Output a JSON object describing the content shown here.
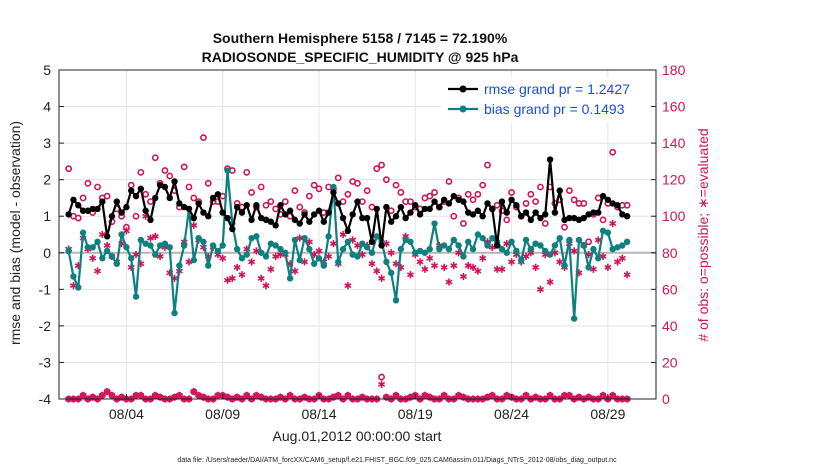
{
  "chart_data": {
    "type": "line",
    "title_line1": "Southern Hemisphere 5158 / 7145 = 72.190%",
    "title_line2": "RADIOSONDE_SPECIFIC_HUMIDITY @ 925 hPa",
    "xlabel": "Aug.01,2012 00:00:00 start",
    "ylabel": "rmse and bias (model - observation)",
    "y2label": "# of obs: o=possible; ∗=evaluated",
    "footer": "data file: /Users/raeder/DAI/ATM_forcXX/CAM6_setup/f.e21.FHIST_BGC.f09_025.CAM6assim.011/Diags_NTrS_2012-08/obs_diag_output.nc",
    "ylim": [
      -4,
      5
    ],
    "y2lim": [
      0,
      180
    ],
    "xlim": [
      0.5,
      31.5
    ],
    "yticks": [
      "-4",
      "-3",
      "-2",
      "-1",
      "0",
      "1",
      "2",
      "3",
      "4",
      "5"
    ],
    "y2ticks": [
      "0",
      "20",
      "40",
      "60",
      "80",
      "100",
      "120",
      "140",
      "160",
      "180"
    ],
    "xtick_labels": [
      "08/04",
      "08/09",
      "08/14",
      "08/19",
      "08/24",
      "08/29"
    ],
    "xtick_days": [
      4,
      9,
      14,
      19,
      24,
      29
    ],
    "legend": [
      {
        "label": "rmse grand pr = 1.2427",
        "color": "#000000"
      },
      {
        "label": "bias grand pr = 0.1493",
        "color": "#0e8080"
      }
    ],
    "colors": {
      "rmse": "#000000",
      "bias": "#0e8080",
      "obs": "#d0145a",
      "zero": "#b5b5b5",
      "grid": "#e4e4e4"
    },
    "x_step_days": 0.25,
    "x_start_day": 1.0,
    "series": [
      {
        "name": "rmse",
        "values": [
          1.05,
          1.45,
          1.3,
          1.15,
          1.15,
          1.2,
          1.2,
          1.4,
          0.45,
          1.0,
          1.4,
          1.1,
          1.25,
          1.7,
          1.55,
          1.75,
          1.15,
          0.9,
          1.5,
          1.85,
          1.8,
          1.5,
          1.95,
          1.35,
          1.25,
          1.2,
          0.95,
          1.35,
          1.1,
          1.0,
          1.5,
          1.6,
          1.1,
          0.95,
          0.65,
          1.25,
          1.1,
          1.3,
          0.9,
          1.3,
          0.95,
          0.9,
          0.85,
          0.75,
          1.3,
          1.05,
          1.15,
          0.9,
          0.8,
          1.05,
          0.85,
          1.05,
          1.15,
          0.85,
          1.1,
          1.65,
          1.35,
          0.95,
          0.6,
          1.05,
          1.4,
          0.95,
          0.95,
          0.3,
          1.2,
          0.2,
          1.25,
          0.85,
          1.0,
          1.25,
          0.95,
          1.1,
          1.3,
          1.05,
          1.2,
          1.2,
          1.4,
          1.25,
          1.45,
          1.35,
          1.55,
          1.45,
          1.4,
          1.1,
          1.05,
          1.15,
          1.0,
          1.35,
          1.2,
          0.2,
          1.4,
          1.1,
          1.45,
          1.3,
          1.0,
          1.1,
          0.9,
          1.1,
          0.95,
          1.05,
          2.55,
          1.1,
          1.7,
          0.9,
          0.95,
          0.95,
          0.9,
          0.95,
          1.05,
          1.1,
          1.1,
          1.55,
          1.45,
          1.35,
          1.3,
          1.05,
          1.0
        ]
      },
      {
        "name": "bias",
        "values": [
          0.05,
          -0.65,
          -0.95,
          0.55,
          0.15,
          0.15,
          0.3,
          -0.15,
          0.05,
          -0.1,
          -0.3,
          0.5,
          0.15,
          -0.15,
          -1.2,
          0.35,
          0.25,
          0.2,
          -0.05,
          0.2,
          0.25,
          0.15,
          -1.65,
          -0.35,
          0.2,
          1.2,
          -0.2,
          0.4,
          0.3,
          -0.35,
          0.2,
          0.05,
          0.2,
          2.25,
          0.8,
          0.1,
          -0.15,
          -0.05,
          0.4,
          0.45,
          0.0,
          -0.1,
          0.25,
          0.2,
          0.1,
          0.0,
          -0.7,
          0.35,
          -0.2,
          0.4,
          0.1,
          -0.3,
          -0.15,
          -0.35,
          0.45,
          1.8,
          -0.25,
          0.1,
          0.3,
          -0.05,
          -0.1,
          0.25,
          0.15,
          0.0,
          0.45,
          0.3,
          -0.25,
          -0.55,
          -1.3,
          0.1,
          0.35,
          0.3,
          0.0,
          0.05,
          0.0,
          0.1,
          0.8,
          0.1,
          0.2,
          0.1,
          0.35,
          0.2,
          -0.1,
          0.3,
          0.1,
          0.5,
          0.4,
          0.2,
          0.4,
          0.3,
          0.1,
          0.0,
          0.3,
          0.05,
          -0.2,
          0.35,
          0.1,
          0.25,
          0.2,
          0.05,
          -0.05,
          0.2,
          0.4,
          -0.35,
          0.35,
          -1.8,
          0.35,
          0.2,
          -0.4,
          0.1,
          -0.15,
          0.6,
          0.55,
          0.1,
          0.15,
          0.2,
          0.3
        ]
      },
      {
        "name": "obs_possible",
        "values": [
          126,
          100,
          99,
          110,
          118,
          102,
          116,
          110,
          111,
          97,
          104,
          100,
          94,
          117,
          100,
          124,
          112,
          108,
          132,
          118,
          125,
          122,
          114,
          105,
          127,
          116,
          110,
          108,
          143,
          118,
          108,
          108,
          111,
          126,
          125,
          107,
          105,
          124,
          113,
          105,
          116,
          106,
          108,
          104,
          101,
          108,
          100,
          114,
          105,
          102,
          111,
          117,
          115,
          102,
          116,
          115,
          121,
          108,
          112,
          119,
          118,
          108,
          114,
          105,
          126,
          128,
          120,
          103,
          117,
          113,
          108,
          108,
          105,
          104,
          110,
          111,
          113,
          105,
          108,
          119,
          100,
          110,
          96,
          112,
          109,
          112,
          117,
          128,
          104,
          106,
          103,
          98,
          113,
          105,
          100,
          107,
          112,
          108,
          116,
          96,
          116,
          107,
          109,
          94,
          114,
          109,
          107,
          107,
          86,
          101,
          110,
          98,
          107,
          135,
          105,
          106,
          106
        ]
      },
      {
        "name": "obs_evaluated",
        "values": [
          82,
          62,
          73,
          88,
          82,
          77,
          70,
          90,
          84,
          78,
          75,
          85,
          92,
          72,
          79,
          74,
          100,
          88,
          89,
          78,
          83,
          69,
          66,
          70,
          86,
          75,
          95,
          87,
          83,
          78,
          83,
          79,
          77,
          65,
          66,
          72,
          68,
          82,
          75,
          81,
          66,
          62,
          71,
          78,
          79,
          79,
          74,
          70,
          88,
          75,
          86,
          79,
          81,
          75,
          78,
          85,
          74,
          90,
          62,
          87,
          84,
          79,
          84,
          74,
          70,
          66,
          85,
          80,
          74,
          72,
          89,
          68,
          79,
          75,
          71,
          77,
          73,
          84,
          72,
          64,
          73,
          80,
          67,
          73,
          72,
          70,
          77,
          86,
          83,
          71,
          71,
          85,
          75,
          79,
          75,
          78,
          80,
          72,
          60,
          79,
          64,
          80,
          75,
          72,
          85,
          81,
          69,
          84,
          79,
          71,
          87,
          78,
          72,
          96,
          75,
          77,
          68
        ]
      },
      {
        "name": "obs_low_possible",
        "values": [
          0,
          0,
          0,
          2,
          0,
          1,
          0,
          2,
          4,
          2,
          0,
          1,
          0,
          0,
          2,
          2,
          0,
          0,
          2,
          1,
          0,
          0,
          1,
          2,
          0,
          0,
          4,
          2,
          1,
          0,
          0,
          2,
          2,
          1,
          0,
          1,
          0,
          2,
          0,
          2,
          1,
          0,
          0,
          0,
          1,
          0,
          2,
          0,
          0,
          1,
          0,
          0,
          2,
          0,
          0,
          1,
          2,
          0,
          2,
          0,
          0,
          1,
          0,
          0,
          0,
          12,
          1,
          0,
          2,
          0,
          0,
          1,
          2,
          0,
          2,
          1,
          0,
          0,
          2,
          0,
          0,
          2,
          1,
          0,
          0,
          0,
          0,
          1,
          2,
          0,
          0,
          2,
          1,
          0,
          0,
          2,
          0,
          1,
          0,
          0,
          2,
          0,
          0,
          2,
          2,
          0,
          1,
          0,
          1,
          0,
          0,
          2,
          0,
          2,
          0,
          0,
          0
        ]
      },
      {
        "name": "obs_low_evaluated",
        "values": [
          0,
          0,
          0,
          2,
          0,
          1,
          0,
          2,
          4,
          2,
          0,
          1,
          0,
          0,
          2,
          2,
          0,
          0,
          2,
          1,
          0,
          0,
          1,
          2,
          0,
          0,
          4,
          2,
          1,
          0,
          0,
          2,
          2,
          1,
          0,
          1,
          0,
          2,
          0,
          2,
          1,
          0,
          0,
          0,
          1,
          0,
          2,
          0,
          0,
          1,
          0,
          0,
          2,
          0,
          0,
          1,
          2,
          0,
          2,
          0,
          0,
          1,
          0,
          0,
          0,
          8,
          1,
          0,
          2,
          0,
          0,
          1,
          2,
          0,
          2,
          1,
          0,
          0,
          2,
          0,
          0,
          2,
          1,
          0,
          0,
          0,
          0,
          1,
          2,
          0,
          0,
          2,
          1,
          0,
          0,
          2,
          0,
          1,
          0,
          0,
          2,
          0,
          0,
          2,
          2,
          0,
          1,
          0,
          1,
          0,
          0,
          2,
          0,
          2,
          0,
          0,
          0
        ]
      }
    ]
  }
}
